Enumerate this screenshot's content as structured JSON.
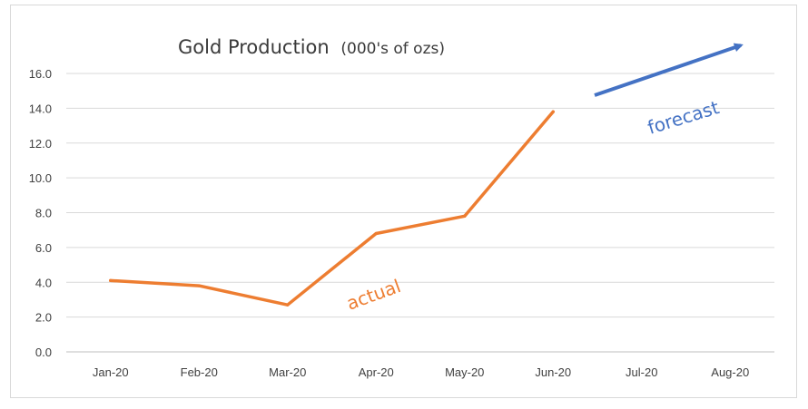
{
  "chart_data": {
    "type": "line",
    "title": "Gold Production",
    "title_units": "(000's of ozs)",
    "categories": [
      "Jan-20",
      "Feb-20",
      "Mar-20",
      "Apr-20",
      "May-20",
      "Jun-20",
      "Jul-20",
      "Aug-20"
    ],
    "series": [
      {
        "values": [
          4.1,
          3.8,
          2.7,
          6.8,
          7.8,
          13.8,
          null,
          null
        ],
        "color": "#ED7D31"
      }
    ],
    "ylim": [
      0,
      16
    ],
    "yticks": [
      "0.0",
      "2.0",
      "4.0",
      "6.0",
      "8.0",
      "10.0",
      "12.0",
      "14.0",
      "16.0"
    ],
    "grid": true,
    "annotations": {
      "actual": {
        "text": "actual",
        "color": "#ED7D31"
      },
      "forecast": {
        "text": "forecast",
        "color": "#4472C4"
      }
    }
  }
}
